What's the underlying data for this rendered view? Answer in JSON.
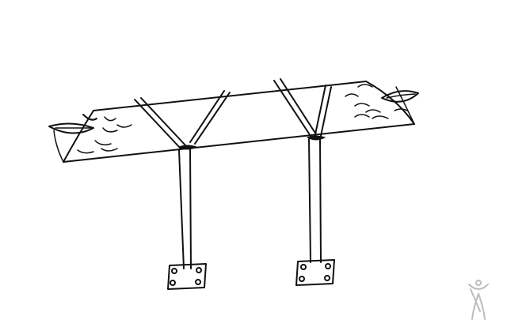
{
  "image": {
    "kind": "line-drawing",
    "subject": "canopy-shelter-sketch"
  },
  "colors": {
    "background": "#ffffff",
    "ink": "#111111",
    "watermark": "#bdbdbd"
  },
  "icons": {
    "watermark": "figure-logo-icon"
  }
}
